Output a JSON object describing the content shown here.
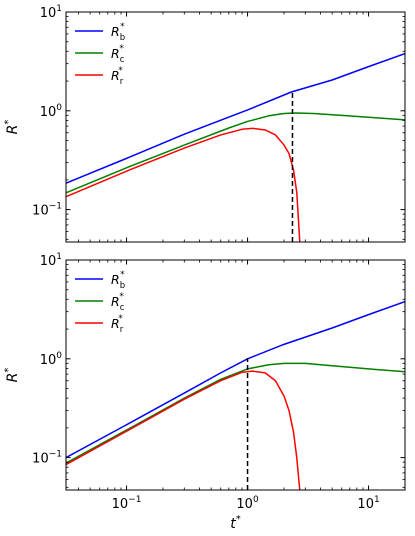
{
  "chart_data": [
    {
      "type": "line",
      "panel": "top",
      "xscale": "log",
      "yscale": "log",
      "xlim": [
        0.0316,
        20
      ],
      "ylim": [
        0.047,
        10
      ],
      "xlabel": "",
      "ylabel": {
        "base": "R",
        "sup": "*"
      },
      "yticks": [
        {
          "value": 0.1,
          "base": "10",
          "exp": "−1"
        },
        {
          "value": 1,
          "base": "10",
          "exp": "0"
        },
        {
          "value": 10,
          "base": "10",
          "exp": "1"
        }
      ],
      "xticks": [
        {
          "value": 0.1,
          "base": "10",
          "exp": "−1"
        },
        {
          "value": 1,
          "base": "10",
          "exp": "0"
        },
        {
          "value": 10,
          "base": "10",
          "exp": "1"
        }
      ],
      "show_xtick_labels": false,
      "legend": "top-left",
      "series": [
        {
          "name": "R_b*",
          "label_base": "R",
          "label_sub": "b",
          "label_sup": "*",
          "color": "#0000ff",
          "x": [
            0.0316,
            0.1,
            0.3,
            1.0,
            2.3,
            5,
            10,
            20
          ],
          "y": [
            0.185,
            0.33,
            0.58,
            1.02,
            1.55,
            2.05,
            2.8,
            3.8
          ]
        },
        {
          "name": "R_c*",
          "label_base": "R",
          "label_sub": "c",
          "label_sup": "*",
          "color": "#008000",
          "x": [
            0.0316,
            0.1,
            0.3,
            0.7,
            1.0,
            1.5,
            2.0,
            2.5,
            3.5,
            6,
            10,
            20
          ],
          "y": [
            0.148,
            0.265,
            0.45,
            0.67,
            0.78,
            0.89,
            0.94,
            0.95,
            0.94,
            0.9,
            0.86,
            0.81
          ]
        },
        {
          "name": "R_r*",
          "label_base": "R",
          "label_sub": "r",
          "label_sup": "*",
          "color": "#ff0000",
          "x": [
            0.0316,
            0.1,
            0.3,
            0.6,
            0.9,
            1.1,
            1.4,
            1.7,
            2.0,
            2.2,
            2.4,
            2.55,
            2.65,
            2.7
          ],
          "y": [
            0.135,
            0.245,
            0.42,
            0.57,
            0.65,
            0.665,
            0.64,
            0.57,
            0.45,
            0.37,
            0.25,
            0.15,
            0.07,
            0.047
          ]
        }
      ],
      "vline": {
        "x": 2.35,
        "y_top": 1.55,
        "color": "#000000",
        "style": "dashed"
      }
    },
    {
      "type": "line",
      "panel": "bottom",
      "xscale": "log",
      "yscale": "log",
      "xlim": [
        0.0316,
        20
      ],
      "ylim": [
        0.047,
        10
      ],
      "xlabel": {
        "base": "t",
        "sup": "*"
      },
      "ylabel": {
        "base": "R",
        "sup": "*"
      },
      "yticks": [
        {
          "value": 0.1,
          "base": "10",
          "exp": "−1"
        },
        {
          "value": 1,
          "base": "10",
          "exp": "0"
        },
        {
          "value": 10,
          "base": "10",
          "exp": "1"
        }
      ],
      "xticks": [
        {
          "value": 0.1,
          "base": "10",
          "exp": "−1"
        },
        {
          "value": 1,
          "base": "10",
          "exp": "0"
        },
        {
          "value": 10,
          "base": "10",
          "exp": "1"
        }
      ],
      "show_xtick_labels": true,
      "legend": "top-left",
      "series": [
        {
          "name": "R_b*",
          "label_base": "R",
          "label_sub": "b",
          "label_sup": "*",
          "color": "#0000ff",
          "x": [
            0.0316,
            0.1,
            0.3,
            0.6,
            1.0,
            2.0,
            5,
            10,
            20
          ],
          "y": [
            0.1,
            0.215,
            0.45,
            0.72,
            1.0,
            1.4,
            2.05,
            2.8,
            3.8
          ]
        },
        {
          "name": "R_c*",
          "label_base": "R",
          "label_sub": "c",
          "label_sup": "*",
          "color": "#008000",
          "x": [
            0.0316,
            0.1,
            0.3,
            0.6,
            1.0,
            1.5,
            2.0,
            3.0,
            5,
            10,
            20
          ],
          "y": [
            0.088,
            0.19,
            0.4,
            0.62,
            0.79,
            0.87,
            0.9,
            0.9,
            0.85,
            0.79,
            0.74
          ]
        },
        {
          "name": "R_r*",
          "label_base": "R",
          "label_sub": "r",
          "label_sup": "*",
          "color": "#ff0000",
          "x": [
            0.0316,
            0.1,
            0.3,
            0.6,
            0.9,
            1.1,
            1.4,
            1.7,
            2.0,
            2.2,
            2.4,
            2.55,
            2.65,
            2.7
          ],
          "y": [
            0.085,
            0.185,
            0.39,
            0.6,
            0.73,
            0.75,
            0.72,
            0.6,
            0.42,
            0.3,
            0.18,
            0.1,
            0.06,
            0.047
          ]
        }
      ],
      "vline": {
        "x": 1.0,
        "y_top": 1.02,
        "color": "#000000",
        "style": "dashed"
      }
    }
  ]
}
